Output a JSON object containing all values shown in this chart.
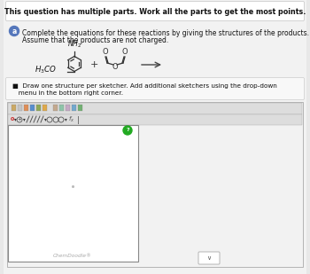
{
  "bg_color": "#e8e8e8",
  "panel_color": "#ffffff",
  "page_bg": "#f2f2f2",
  "title_text": "This question has multiple parts. Work all the parts to get the most points.",
  "part_label": "a",
  "part_label_color": "#5577bb",
  "instruction_line1": "Complete the equations for these reactions by giving the structures of the products.",
  "instruction_line2": "Assume that the products are not charged.",
  "bullet_line1": "■  Draw one structure per sketcher. Add additional sketchers using the drop-down",
  "bullet_line2": "   menu in the bottom right corner.",
  "chemdoodle_label": "ChemDoodle®",
  "arrow_color": "#444444",
  "sketcher_bg": "#ffffff",
  "sketcher_border": "#888888",
  "toolbar_bg": "#dddddd",
  "toolbar_border": "#aaaaaa",
  "green_circle_color": "#22aa22",
  "dropdown_border": "#aaaaaa",
  "outer_border": "#aaaaaa",
  "h3co_text": "H₃CO",
  "nh2_text": "NH₂"
}
